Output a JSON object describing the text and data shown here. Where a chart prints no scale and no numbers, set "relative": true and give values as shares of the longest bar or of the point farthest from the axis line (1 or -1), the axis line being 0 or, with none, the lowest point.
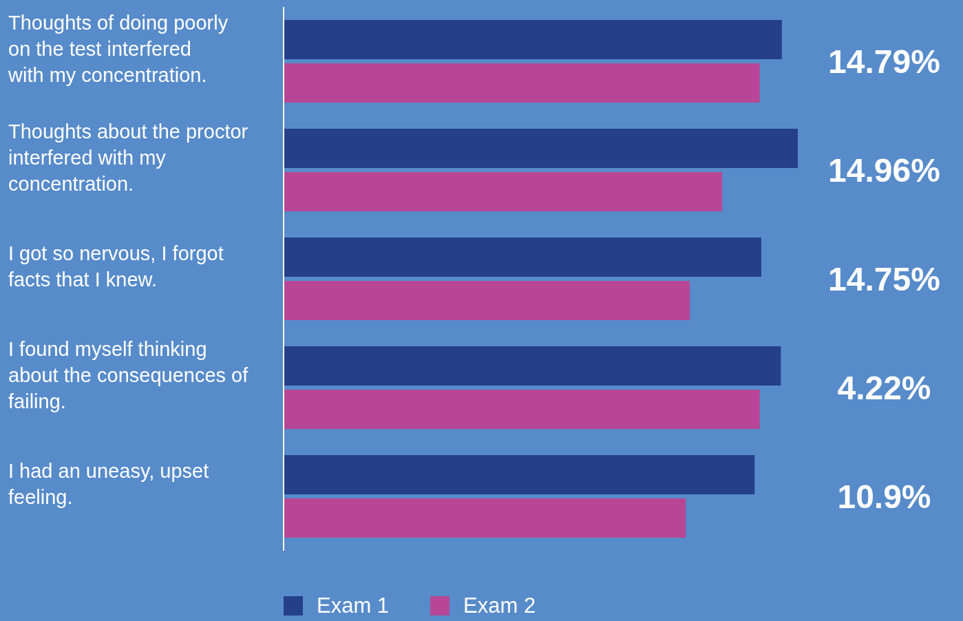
{
  "chart_data": {
    "type": "bar",
    "orientation": "horizontal",
    "relative": true,
    "categories": [
      "Thoughts of doing poorly on the test interfered with my concentration.",
      "Thoughts about the proctor interfered with my concentration.",
      "I got so nervous, I forgot facts that I knew.",
      "I found myself thinking about the consequences of failing.",
      "I had an uneasy, upset feeling."
    ],
    "series": [
      {
        "name": "Exam 1",
        "color": "#253f8a",
        "values": [
          0.969,
          1,
          0.929,
          0.967,
          0.916
        ]
      },
      {
        "name": "Exam 2",
        "color": "#b84696",
        "values": [
          0.926,
          0.853,
          0.79,
          0.926,
          0.782
        ]
      }
    ],
    "annotations": [
      "14.79%",
      "14.96%",
      "14.75%",
      "4.22%",
      "10.9%"
    ],
    "legend": "bottom",
    "grid": false
  }
}
